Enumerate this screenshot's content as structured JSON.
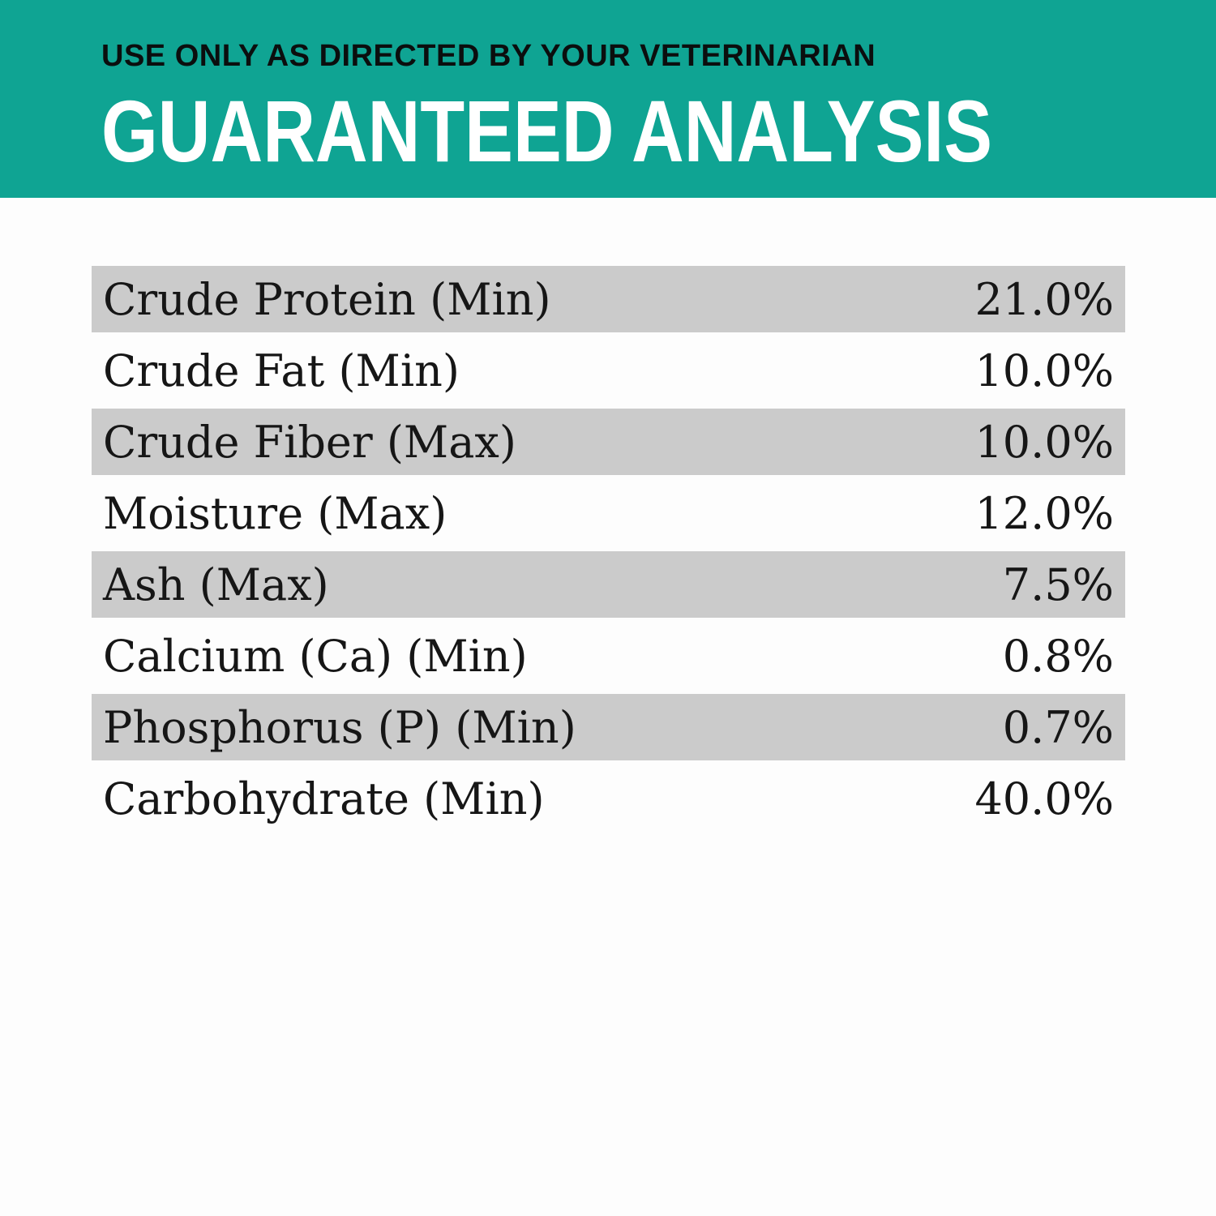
{
  "header": {
    "subtitle": "USE ONLY AS DIRECTED BY YOUR VETERINARIAN",
    "title": "GUARANTEED ANALYSIS",
    "band_color": "#0fa493",
    "title_color": "#ffffff",
    "subtitle_color": "#0b0e0e"
  },
  "table": {
    "stripe_color": "#cbcbcb",
    "text_color": "#161616",
    "rows": [
      {
        "label": "Crude Protein (Min)",
        "value": "21.0%"
      },
      {
        "label": "Crude Fat (Min)",
        "value": "10.0%"
      },
      {
        "label": "Crude Fiber (Max)",
        "value": "10.0%"
      },
      {
        "label": "Moisture (Max)",
        "value": "12.0%"
      },
      {
        "label": "Ash (Max)",
        "value": "7.5%"
      },
      {
        "label": "Calcium (Ca) (Min)",
        "value": "0.8%"
      },
      {
        "label": "Phosphorus (P) (Min)",
        "value": "0.7%"
      },
      {
        "label": "Carbohydrate (Min)",
        "value": "40.0%"
      }
    ]
  }
}
